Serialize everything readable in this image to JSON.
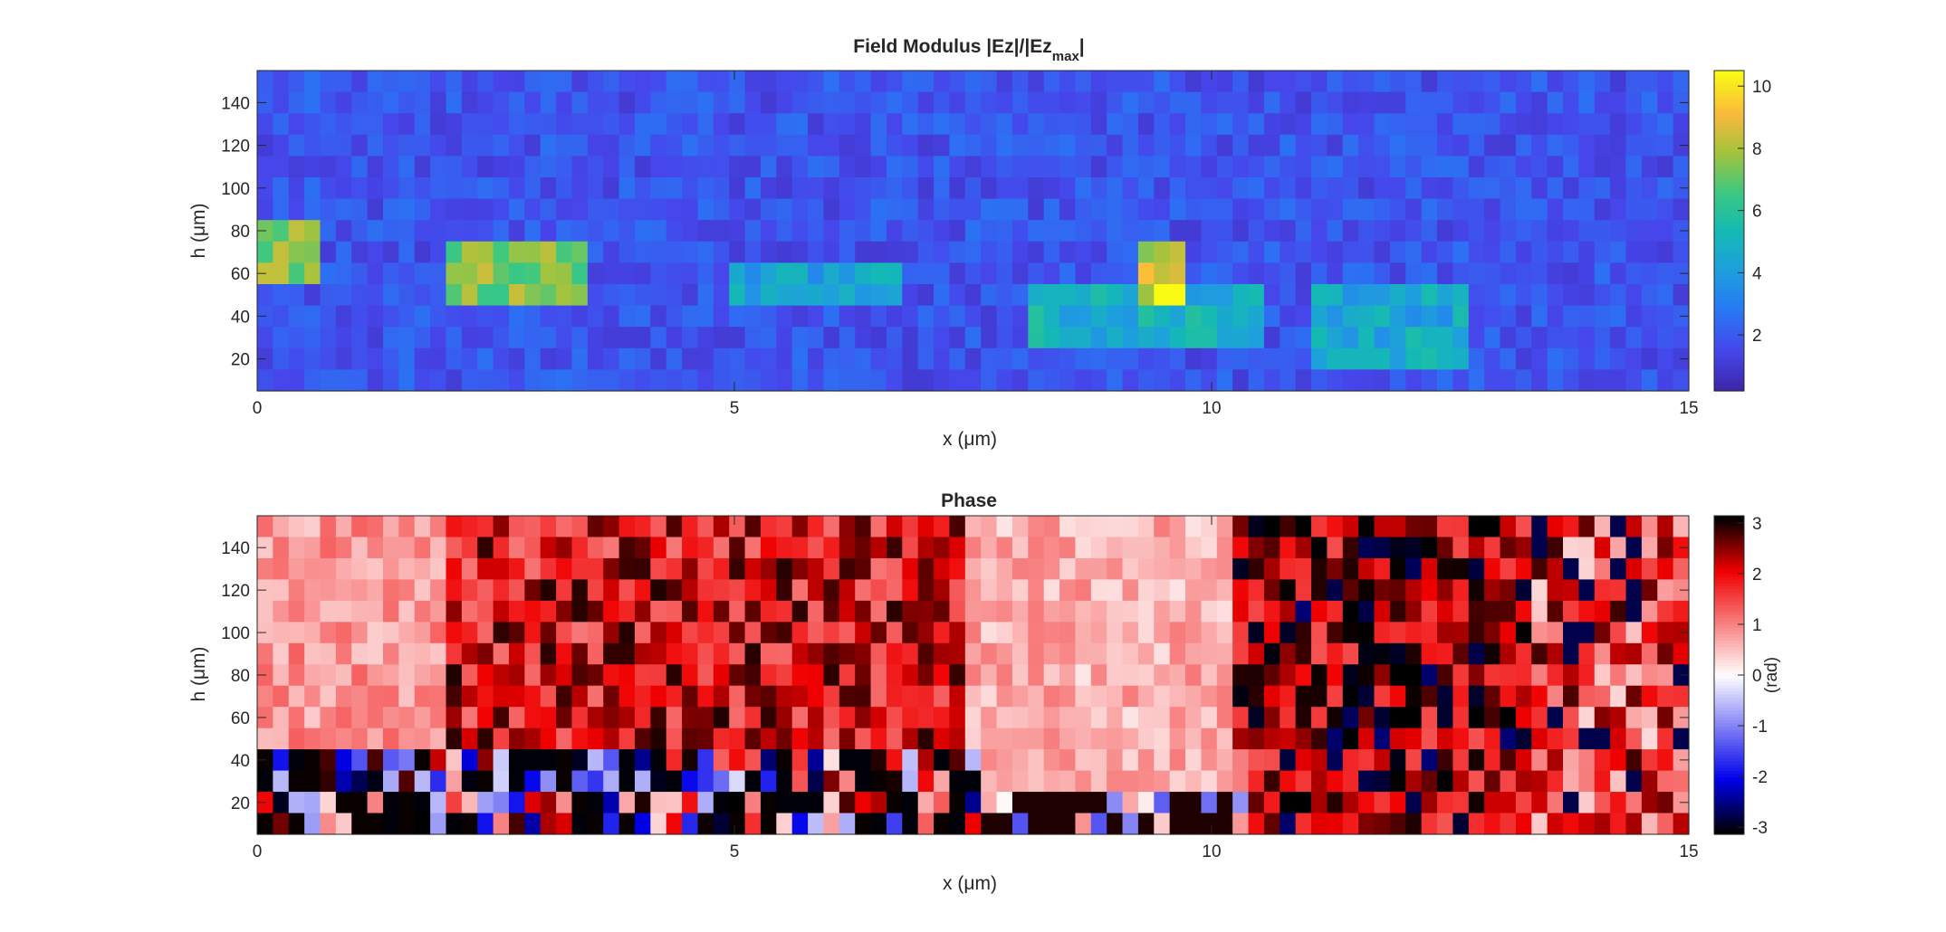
{
  "chart_data": [
    {
      "type": "heatmap",
      "title_main": "Field Modulus |Ez|/|Ez",
      "title_sub": "max",
      "title_end": "|",
      "xlabel": "x (μm)",
      "ylabel": "h (μm)",
      "xlim": [
        0,
        15
      ],
      "ylim": [
        5,
        155
      ],
      "xticks": [
        "0",
        "5",
        "10",
        "15"
      ],
      "yticks": [
        "20",
        "40",
        "60",
        "80",
        "100",
        "120",
        "140"
      ],
      "colorbar_ticks": [
        "2",
        "4",
        "6",
        "8",
        "10"
      ],
      "clim": [
        0.2,
        10.5
      ],
      "colormap": "parula",
      "grid_cols": 91,
      "grid_rows": 15,
      "hotspots": [
        {
          "x0": 0.0,
          "x1": 0.6,
          "h0": 55,
          "h1": 85,
          "value": 7.5
        },
        {
          "x0": 2.0,
          "x1": 3.5,
          "h0": 45,
          "h1": 75,
          "value": 7.6
        },
        {
          "x0": 5.0,
          "x1": 6.7,
          "h0": 45,
          "h1": 65,
          "value": 4.4
        },
        {
          "x0": 8.0,
          "x1": 10.6,
          "h0": 25,
          "h1": 55,
          "value": 5.0
        },
        {
          "x0": 9.3,
          "x1": 9.8,
          "h0": 45,
          "h1": 75,
          "value": 8.5
        },
        {
          "x0": 11.0,
          "x1": 12.7,
          "h0": 15,
          "h1": 55,
          "value": 4.6
        }
      ],
      "peak": {
        "x": 9.6,
        "h": 50,
        "value": 10.5
      }
    },
    {
      "type": "heatmap",
      "title": "Phase",
      "xlabel": "x (μm)",
      "ylabel": "h (μm)",
      "xlim": [
        0,
        15
      ],
      "ylim": [
        5,
        155
      ],
      "xticks": [
        "0",
        "5",
        "10",
        "15"
      ],
      "yticks": [
        "20",
        "40",
        "60",
        "80",
        "100",
        "120",
        "140"
      ],
      "colorbar_ticks": [
        "3",
        "2",
        "1",
        "0",
        "-1",
        "-2",
        "-3"
      ],
      "colorbar_label": "(rad)",
      "clim": [
        -3.14,
        3.14
      ],
      "colormap": "black-blue-white-red-black (cyclic)",
      "grid_cols": 91,
      "grid_rows": 15
    }
  ]
}
